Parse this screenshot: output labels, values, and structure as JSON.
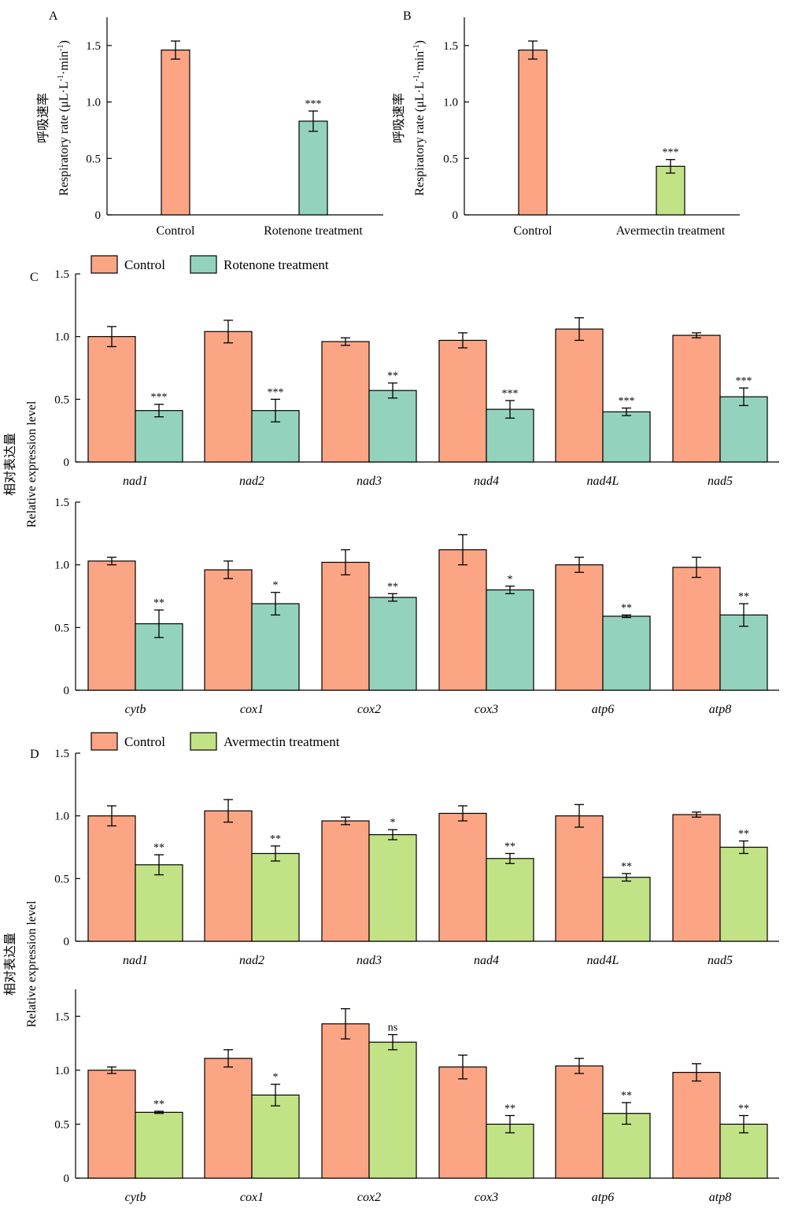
{
  "colors": {
    "control": "#fba584",
    "rotenone": "#93d3bd",
    "avermectin": "#c2e286",
    "axis": "#000000"
  },
  "chart_data": [
    {
      "id": "A",
      "panel_label": "A",
      "type": "bar",
      "ylabel": "呼吸速率 Respiratory rate (μL·L⁻¹·min⁻¹)",
      "ylabel_cn": "呼吸速率",
      "ylabel_en": "Respiratory rate (μL·L",
      "ylabel_unit": "·min",
      "ylabel_exp": "-1",
      "ylim": [
        0,
        1.75
      ],
      "yticks": [
        "0",
        "0.5",
        "1.0",
        "1.5"
      ],
      "categories": [
        "Control",
        "Rotenone treatment"
      ],
      "values": [
        1.46,
        0.83
      ],
      "errors": [
        0.08,
        0.09
      ],
      "significance": [
        "",
        "***"
      ],
      "bar_colors": [
        "control",
        "rotenone"
      ]
    },
    {
      "id": "B",
      "panel_label": "B",
      "type": "bar",
      "ylabel": "呼吸速率 Respiratory rate (μL·L⁻¹·min⁻¹)",
      "ylabel_cn": "呼吸速率",
      "ylabel_en": "Respiratory rate (μL·L",
      "ylabel_unit": "·min",
      "ylabel_exp": "-1",
      "ylim": [
        0,
        1.75
      ],
      "yticks": [
        "0",
        "0.5",
        "1.0",
        "1.5"
      ],
      "categories": [
        "Control",
        "Avermectin treatment"
      ],
      "values": [
        1.46,
        0.43
      ],
      "errors": [
        0.08,
        0.06
      ],
      "significance": [
        "",
        "***"
      ],
      "bar_colors": [
        "control",
        "avermectin"
      ]
    },
    {
      "id": "C1",
      "panel_label": "C",
      "type": "bar",
      "legend": [
        "Control",
        "Rotenone treatment"
      ],
      "ylim": [
        0,
        1.5
      ],
      "yticks": [
        "0",
        "0.5",
        "1.0",
        "1.5"
      ],
      "categories": [
        "nad1",
        "nad2",
        "nad3",
        "nad4",
        "nad4L",
        "nad5"
      ],
      "series": [
        {
          "name": "Control",
          "color": "control",
          "values": [
            1.0,
            1.04,
            0.96,
            0.97,
            1.06,
            1.01
          ],
          "errors": [
            0.08,
            0.09,
            0.03,
            0.06,
            0.09,
            0.02
          ],
          "significance": [
            "",
            "",
            "",
            "",
            "",
            ""
          ]
        },
        {
          "name": "Rotenone treatment",
          "color": "rotenone",
          "values": [
            0.41,
            0.41,
            0.57,
            0.42,
            0.4,
            0.52
          ],
          "errors": [
            0.05,
            0.09,
            0.06,
            0.07,
            0.03,
            0.07
          ],
          "significance": [
            "***",
            "***",
            "**",
            "***",
            "***",
            "***"
          ]
        }
      ]
    },
    {
      "id": "C2",
      "type": "bar",
      "ylabel_cn": "相对表达量",
      "ylabel_en": "Relative expression level",
      "ylim": [
        0,
        1.5
      ],
      "yticks": [
        "0",
        "0.5",
        "1.0",
        "1.5"
      ],
      "categories": [
        "cytb",
        "cox1",
        "cox2",
        "cox3",
        "atp6",
        "atp8"
      ],
      "series": [
        {
          "name": "Control",
          "color": "control",
          "values": [
            1.03,
            0.96,
            1.02,
            1.12,
            1.0,
            0.98
          ],
          "errors": [
            0.03,
            0.07,
            0.1,
            0.12,
            0.06,
            0.08
          ],
          "significance": [
            "",
            "",
            "",
            "",
            "",
            ""
          ]
        },
        {
          "name": "Rotenone treatment",
          "color": "rotenone",
          "values": [
            0.53,
            0.69,
            0.74,
            0.8,
            0.59,
            0.6
          ],
          "errors": [
            0.11,
            0.09,
            0.03,
            0.03,
            0.01,
            0.09
          ],
          "significance": [
            "**",
            "*",
            "**",
            "*",
            "**",
            "**"
          ]
        }
      ]
    },
    {
      "id": "D1",
      "panel_label": "D",
      "type": "bar",
      "legend": [
        "Control",
        "Avermectin treatment"
      ],
      "ylim": [
        0,
        1.5
      ],
      "yticks": [
        "0",
        "0.5",
        "1.0",
        "1.5"
      ],
      "categories": [
        "nad1",
        "nad2",
        "nad3",
        "nad4",
        "nad4L",
        "nad5"
      ],
      "series": [
        {
          "name": "Control",
          "color": "control",
          "values": [
            1.0,
            1.04,
            0.96,
            1.02,
            1.0,
            1.01
          ],
          "errors": [
            0.08,
            0.09,
            0.03,
            0.06,
            0.09,
            0.02
          ],
          "significance": [
            "",
            "",
            "",
            "",
            "",
            ""
          ]
        },
        {
          "name": "Avermectin treatment",
          "color": "avermectin",
          "values": [
            0.61,
            0.7,
            0.85,
            0.66,
            0.51,
            0.75
          ],
          "errors": [
            0.08,
            0.06,
            0.04,
            0.04,
            0.03,
            0.05
          ],
          "significance": [
            "**",
            "**",
            "*",
            "**",
            "**",
            "**"
          ]
        }
      ]
    },
    {
      "id": "D2",
      "type": "bar",
      "ylabel_cn": "相对表达量",
      "ylabel_en": "Relative expression level",
      "ylim": [
        0,
        1.75
      ],
      "yticks": [
        "0",
        "0.5",
        "1.0",
        "1.5"
      ],
      "categories": [
        "cytb",
        "cox1",
        "cox2",
        "cox3",
        "atp6",
        "atp8"
      ],
      "series": [
        {
          "name": "Control",
          "color": "control",
          "values": [
            1.0,
            1.11,
            1.43,
            1.03,
            1.04,
            0.98
          ],
          "errors": [
            0.03,
            0.08,
            0.14,
            0.11,
            0.07,
            0.08
          ],
          "significance": [
            "",
            "",
            "",
            "",
            "",
            ""
          ]
        },
        {
          "name": "Avermectin treatment",
          "color": "avermectin",
          "values": [
            0.61,
            0.77,
            1.26,
            0.5,
            0.6,
            0.5
          ],
          "errors": [
            0.01,
            0.1,
            0.07,
            0.08,
            0.1,
            0.08
          ],
          "significance": [
            "**",
            "*",
            "ns",
            "**",
            "**",
            "**"
          ]
        }
      ]
    }
  ]
}
